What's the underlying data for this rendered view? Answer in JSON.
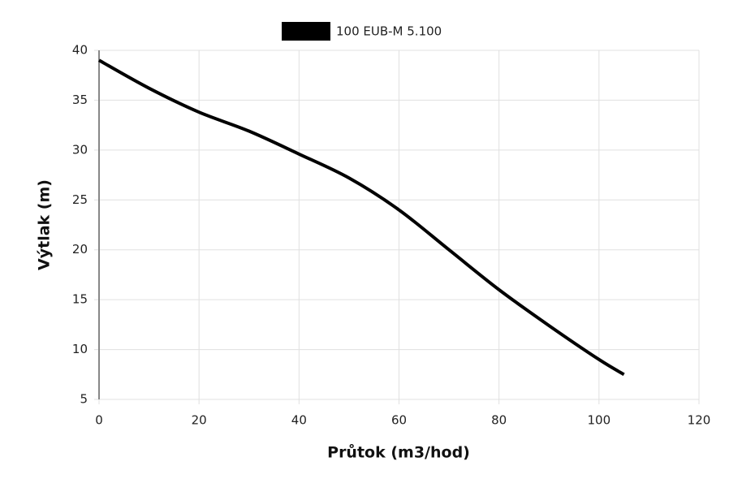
{
  "chart_data": {
    "type": "line",
    "x_label": "Průtok (m3/hod)",
    "y_label": "Výtlak (m)",
    "x": [
      0,
      10,
      20,
      30,
      40,
      50,
      60,
      70,
      80,
      90,
      100,
      105
    ],
    "series": [
      {
        "name": "100 EUB-M 5.100",
        "color": "#000000",
        "values": [
          39,
          36.2,
          33.8,
          31.9,
          29.6,
          27.2,
          24,
          20,
          16,
          12.4,
          9,
          7.5
        ]
      }
    ],
    "xlim": [
      0,
      120
    ],
    "xticks": [
      0,
      20,
      40,
      60,
      80,
      100,
      120
    ],
    "ylim": [
      5,
      40
    ],
    "yticks": [
      5,
      10,
      15,
      20,
      25,
      30,
      35,
      40
    ],
    "grid": true,
    "legend": "top"
  }
}
